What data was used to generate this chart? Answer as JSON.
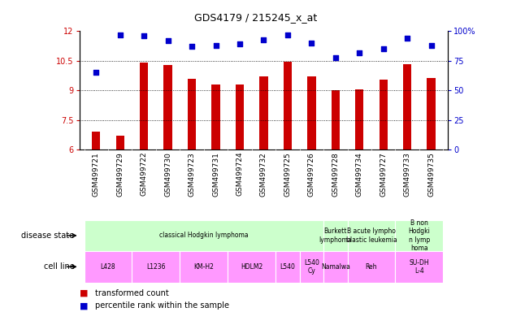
{
  "title": "GDS4179 / 215245_x_at",
  "samples": [
    "GSM499721",
    "GSM499729",
    "GSM499722",
    "GSM499730",
    "GSM499723",
    "GSM499731",
    "GSM499724",
    "GSM499732",
    "GSM499725",
    "GSM499726",
    "GSM499728",
    "GSM499734",
    "GSM499727",
    "GSM499733",
    "GSM499735"
  ],
  "transformed_count": [
    6.9,
    6.7,
    10.4,
    10.3,
    9.6,
    9.3,
    9.3,
    9.7,
    10.45,
    9.7,
    9.0,
    9.05,
    9.55,
    10.35,
    9.65
  ],
  "percentile_rank": [
    65,
    97,
    96,
    92,
    87,
    88,
    89,
    93,
    97,
    90,
    78,
    82,
    85,
    94,
    88
  ],
  "ylim_left": [
    6,
    12
  ],
  "ylim_right": [
    0,
    100
  ],
  "yticks_left": [
    6,
    7.5,
    9,
    10.5,
    12
  ],
  "yticks_right": [
    0,
    25,
    50,
    75,
    100
  ],
  "bar_color": "#cc0000",
  "dot_color": "#0000cc",
  "background_color": "#ffffff",
  "ds_bounds": [
    [
      0,
      10,
      "classical Hodgkin lymphoma",
      "#ccffcc"
    ],
    [
      10,
      11,
      "Burkett\nlymphoma",
      "#ccffcc"
    ],
    [
      11,
      13,
      "B acute lympho\nblastic leukemia",
      "#ccffcc"
    ],
    [
      13,
      15,
      "B non\nHodgki\nn lymp\nhoma",
      "#ccffcc"
    ]
  ],
  "cl_bounds": [
    [
      0,
      2,
      "L428",
      "#ff99ff"
    ],
    [
      2,
      4,
      "L1236",
      "#ff99ff"
    ],
    [
      4,
      6,
      "KM-H2",
      "#ff99ff"
    ],
    [
      6,
      8,
      "HDLM2",
      "#ff99ff"
    ],
    [
      8,
      9,
      "L540",
      "#ff99ff"
    ],
    [
      9,
      10,
      "L540\nCy",
      "#ff99ff"
    ],
    [
      10,
      11,
      "Namalwa",
      "#ff99ff"
    ],
    [
      11,
      13,
      "Reh",
      "#ff99ff"
    ],
    [
      13,
      15,
      "SU-DH\nL-4",
      "#ff99ff"
    ]
  ]
}
